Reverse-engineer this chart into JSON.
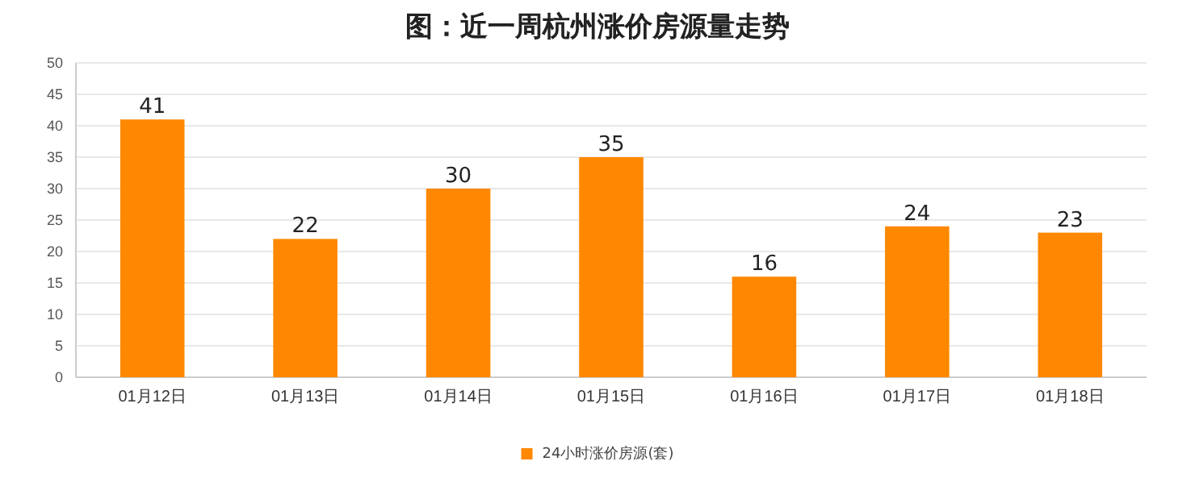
{
  "chart_data": {
    "type": "bar",
    "title": "图：近一周杭州涨价房源量走势",
    "categories": [
      "01月12日",
      "01月13日",
      "01月14日",
      "01月15日",
      "01月16日",
      "01月17日",
      "01月18日"
    ],
    "series": [
      {
        "name": "24小时涨价房源(套)",
        "color": "#ff8800",
        "values": [
          41,
          22,
          30,
          35,
          16,
          24,
          23
        ]
      }
    ],
    "ylim": [
      0,
      50
    ],
    "yticks": [
      0,
      5,
      10,
      15,
      20,
      25,
      30,
      35,
      40,
      45,
      50
    ],
    "grid": "y",
    "legend": "bottom",
    "data_labels": true
  }
}
